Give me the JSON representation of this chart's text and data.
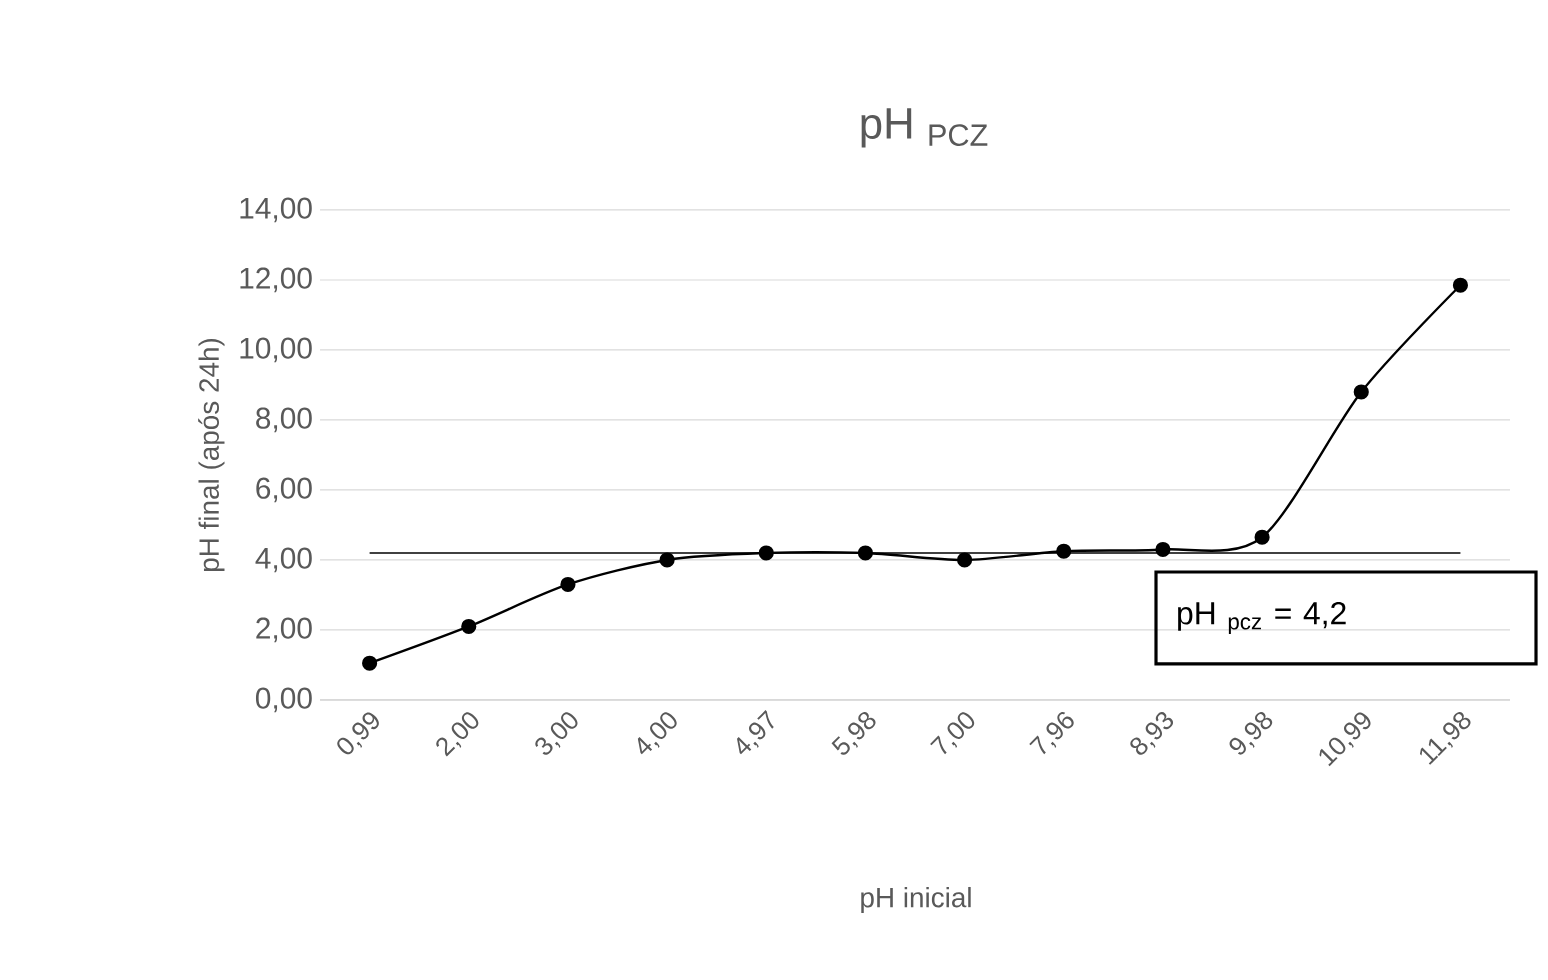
{
  "chart_data": {
    "type": "line",
    "title": "pH $_{PCZ}$",
    "xlabel": "pH inicial",
    "ylabel": "pH final (após 24h)",
    "categories": [
      "0,99",
      "2,00",
      "3,00",
      "4,00",
      "4,97",
      "5,98",
      "7,00",
      "7,96",
      "8,93",
      "9,98",
      "10,99",
      "11,98"
    ],
    "series": [
      {
        "color": "#000000",
        "values": [
          1.05,
          2.1,
          3.3,
          4.0,
          4.2,
          4.2,
          4.0,
          4.25,
          4.3,
          4.65,
          8.8,
          11.85
        ]
      }
    ],
    "ylim": [
      0,
      14
    ],
    "yticks": [
      {
        "value": 0,
        "label": "0,00"
      },
      {
        "value": 2,
        "label": "2,00"
      },
      {
        "value": 4,
        "label": "4,00"
      },
      {
        "value": 6,
        "label": "6,00"
      },
      {
        "value": 8,
        "label": "8,00"
      },
      {
        "value": 10,
        "label": "10,00"
      },
      {
        "value": 12,
        "label": "12,00"
      },
      {
        "value": 14,
        "label": "14,00"
      }
    ],
    "grid": "y",
    "marker": "circle",
    "line_style": "solid",
    "ref_lines": [
      {
        "axis": "y",
        "value": 4.2,
        "color": "#404040"
      }
    ],
    "annotations": [
      "pH $_{pcz}$ = 4,2"
    ]
  }
}
